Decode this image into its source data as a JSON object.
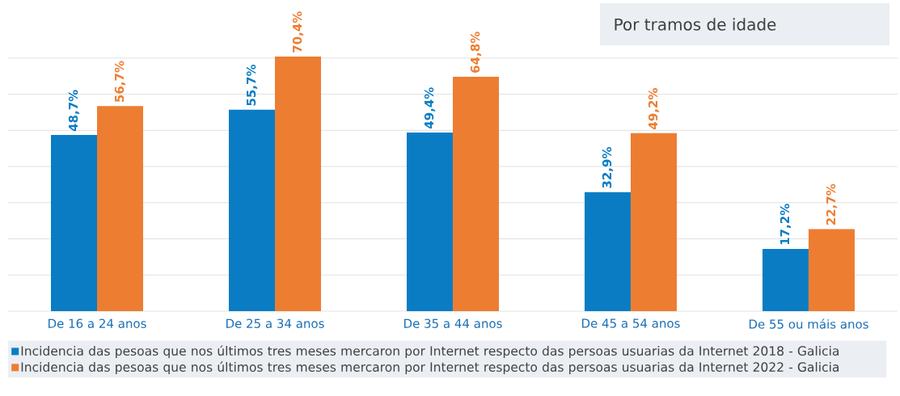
{
  "chart_data": {
    "type": "bar",
    "title": "Por tramos de idade",
    "categories": [
      "De 16 a 24 anos",
      "De 25 a 34 anos",
      "De 35 a 44 anos",
      "De 45 a 54 anos",
      "De 55 ou máis anos"
    ],
    "series": [
      {
        "name": "Incidencia das pesoas que nos últimos tres meses mercaron por Internet respecto das persoas usuarias da Internet 2018 - Galicia",
        "color": "#0a7cc4",
        "values": [
          48.7,
          55.7,
          49.4,
          32.9,
          17.2
        ],
        "value_labels": [
          "48,7%",
          "55,7%",
          "49,4%",
          "32,9%",
          "17,2%"
        ]
      },
      {
        "name": "Incidencia das pesoas que nos últimos tres meses mercaron por Internet respecto das persoas usuarias da Internet 2022 - Galicia",
        "color": "#ed7d31",
        "values": [
          56.7,
          70.4,
          64.8,
          49.2,
          22.7
        ],
        "value_labels": [
          "56,7%",
          "70,4%",
          "64,8%",
          "49,2%",
          "22,7%"
        ]
      }
    ],
    "grid": "y",
    "legend": "bottom",
    "tick_labels": "x"
  }
}
